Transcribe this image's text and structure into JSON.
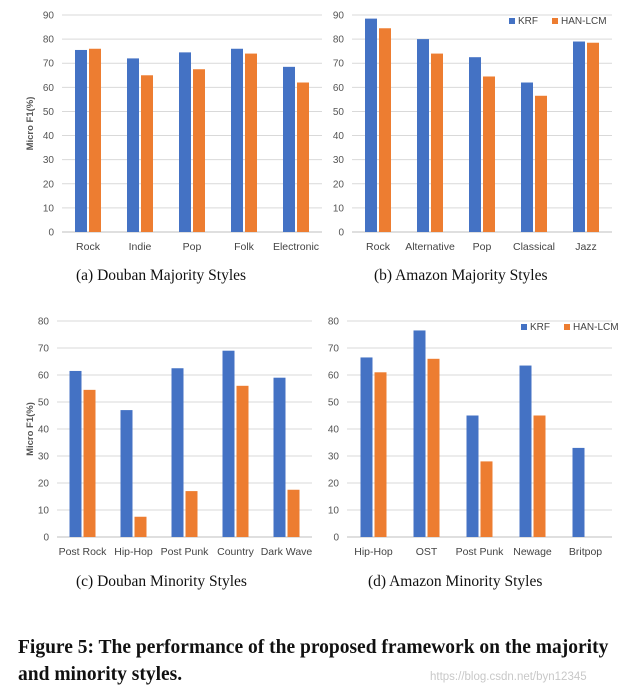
{
  "colors": {
    "krf": "#4472c4",
    "han": "#ed7d31",
    "grid": "#d9d9d9",
    "axis": "#bfbfbf"
  },
  "figure_caption": "Figure 5: The performance of the proposed framework on the majority and minority styles.",
  "watermark": "https://blog.csdn.net/byn12345",
  "chart_data": [
    {
      "type": "bar",
      "caption": "(a)  Douban Majority Styles",
      "ylabel": "Micro F1(%)",
      "ylim": [
        0,
        90
      ],
      "yticks": [
        "0",
        "10",
        "20",
        "30",
        "40",
        "50",
        "60",
        "70",
        "80",
        "90"
      ],
      "categories": [
        "Rock",
        "Indie",
        "Pop",
        "Folk",
        "Electronic"
      ],
      "legend": null,
      "series": [
        {
          "name": "KRF",
          "values": [
            75.5,
            72,
            74.5,
            76,
            68.5
          ]
        },
        {
          "name": "HAN-LCM",
          "values": [
            76,
            65,
            67.5,
            74,
            62
          ]
        }
      ]
    },
    {
      "type": "bar",
      "caption": "(b)  Amazon Majority Styles",
      "ylabel": "",
      "ylim": [
        0,
        90
      ],
      "yticks": [
        "0",
        "10",
        "20",
        "30",
        "40",
        "50",
        "60",
        "70",
        "80",
        "90"
      ],
      "categories": [
        "Rock",
        "Alternative",
        "Pop",
        "Classical",
        "Jazz"
      ],
      "legend": [
        "KRF",
        "HAN-LCM"
      ],
      "series": [
        {
          "name": "KRF",
          "values": [
            88.5,
            80,
            72.5,
            62,
            79
          ]
        },
        {
          "name": "HAN-LCM",
          "values": [
            84.5,
            74,
            64.5,
            56.5,
            78.5
          ]
        }
      ]
    },
    {
      "type": "bar",
      "caption": "(c)  Douban Minority Styles",
      "ylabel": "Micro F1(%)",
      "ylim": [
        0,
        80
      ],
      "yticks": [
        "0",
        "10",
        "20",
        "30",
        "40",
        "50",
        "60",
        "70",
        "80"
      ],
      "categories": [
        "Post Rock",
        "Hip-Hop",
        "Post Punk",
        "Country",
        "Dark Wave"
      ],
      "legend": null,
      "series": [
        {
          "name": "KRF",
          "values": [
            61.5,
            47,
            62.5,
            69,
            59
          ]
        },
        {
          "name": "HAN-LCM",
          "values": [
            54.5,
            7.5,
            17,
            56,
            17.5
          ]
        }
      ]
    },
    {
      "type": "bar",
      "caption": "(d)  Amazon Minority Styles",
      "ylabel": "",
      "ylim": [
        0,
        80
      ],
      "yticks": [
        "0",
        "10",
        "20",
        "30",
        "40",
        "50",
        "60",
        "70",
        "80"
      ],
      "categories": [
        "Hip-Hop",
        "OST",
        "Post Punk",
        "Newage",
        "Britpop"
      ],
      "legend": [
        "KRF",
        "HAN-LCM"
      ],
      "series": [
        {
          "name": "KRF",
          "values": [
            66.5,
            76.5,
            45,
            63.5,
            33
          ]
        },
        {
          "name": "HAN-LCM",
          "values": [
            61,
            66,
            28,
            45,
            null
          ]
        }
      ]
    }
  ]
}
